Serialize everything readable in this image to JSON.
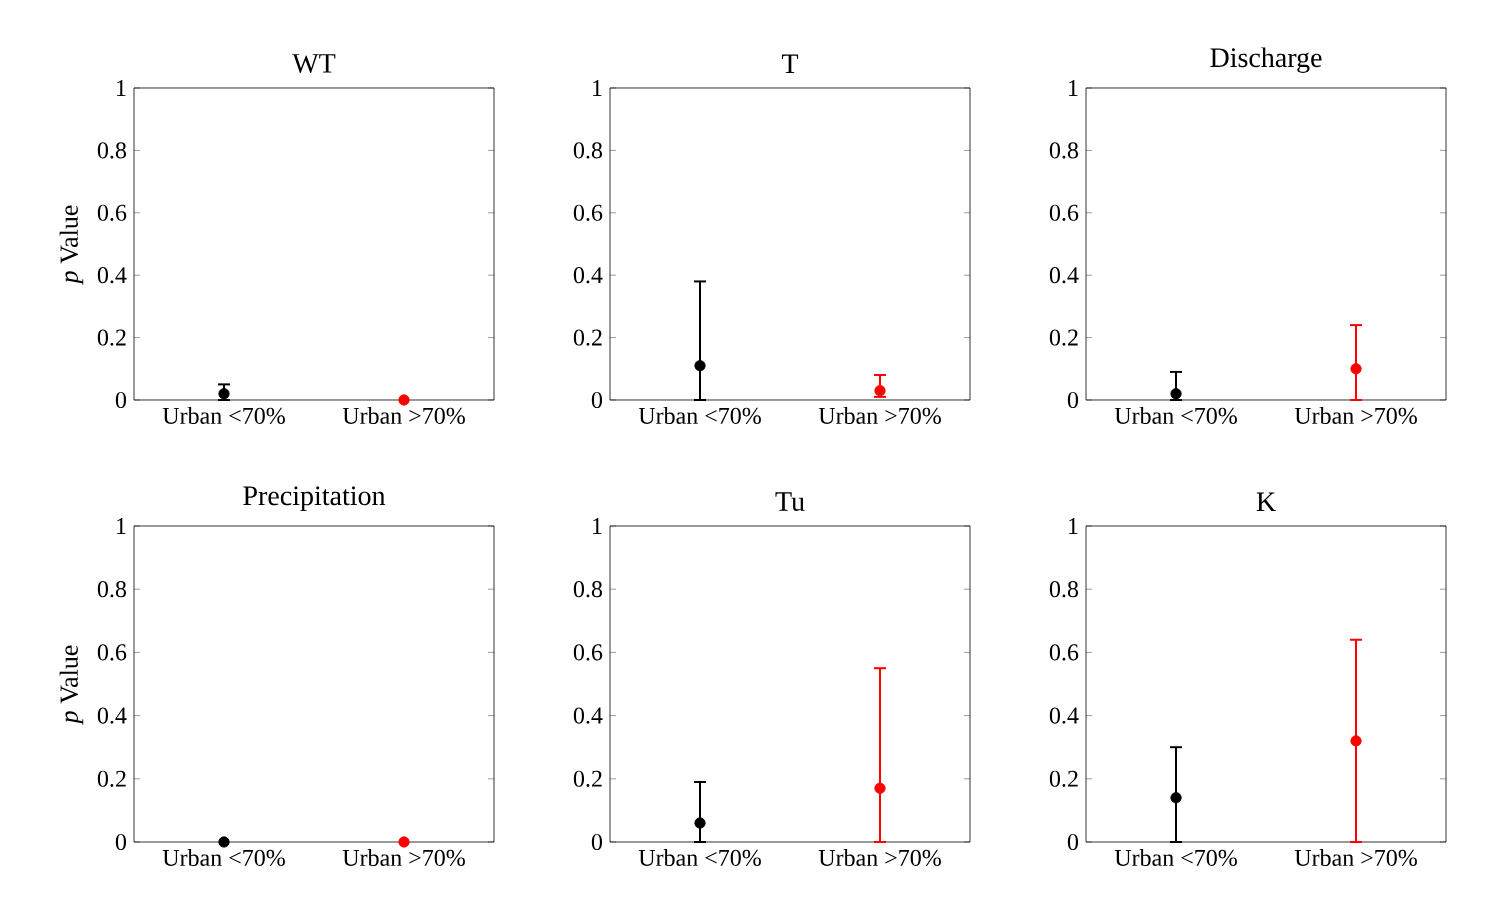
{
  "chart_data": [
    {
      "type": "scatter",
      "title": "WT",
      "ylabel": "*p* Value",
      "categories": [
        "Urban <70%",
        "Urban >70%"
      ],
      "values": [
        0.02,
        0.0
      ],
      "colors": [
        "#000000",
        "#ff0000"
      ],
      "errors": [
        [
          0,
          0.05
        ],
        null
      ],
      "ylim": [
        0,
        1
      ],
      "yticks": [
        0,
        0.2,
        0.4,
        0.6,
        0.8,
        1
      ],
      "grid": false
    },
    {
      "type": "scatter",
      "title": "T",
      "categories": [
        "Urban <70%",
        "Urban >70%"
      ],
      "values": [
        0.11,
        0.03
      ],
      "colors": [
        "#000000",
        "#ff0000"
      ],
      "errors": [
        [
          0,
          0.38
        ],
        [
          0.01,
          0.08
        ]
      ],
      "ylim": [
        0,
        1
      ],
      "yticks": [
        0,
        0.2,
        0.4,
        0.6,
        0.8,
        1
      ],
      "grid": false
    },
    {
      "type": "scatter",
      "title": "Discharge",
      "categories": [
        "Urban <70%",
        "Urban >70%"
      ],
      "values": [
        0.02,
        0.1
      ],
      "colors": [
        "#000000",
        "#ff0000"
      ],
      "errors": [
        [
          0,
          0.09
        ],
        [
          0,
          0.24
        ]
      ],
      "ylim": [
        0,
        1
      ],
      "yticks": [
        0,
        0.2,
        0.4,
        0.6,
        0.8,
        1
      ],
      "grid": false
    },
    {
      "type": "scatter",
      "title": "Precipitation",
      "ylabel": "*p* Value",
      "categories": [
        "Urban <70%",
        "Urban >70%"
      ],
      "values": [
        0.0,
        0.0
      ],
      "colors": [
        "#000000",
        "#ff0000"
      ],
      "errors": [
        null,
        null
      ],
      "ylim": [
        0,
        1
      ],
      "yticks": [
        0,
        0.2,
        0.4,
        0.6,
        0.8,
        1
      ],
      "grid": false
    },
    {
      "type": "scatter",
      "title": "Tu",
      "categories": [
        "Urban <70%",
        "Urban >70%"
      ],
      "values": [
        0.06,
        0.17
      ],
      "colors": [
        "#000000",
        "#ff0000"
      ],
      "errors": [
        [
          0,
          0.19
        ],
        [
          0,
          0.55
        ]
      ],
      "ylim": [
        0,
        1
      ],
      "yticks": [
        0,
        0.2,
        0.4,
        0.6,
        0.8,
        1
      ],
      "grid": false
    },
    {
      "type": "scatter",
      "title": "K",
      "categories": [
        "Urban <70%",
        "Urban >70%"
      ],
      "values": [
        0.14,
        0.32
      ],
      "colors": [
        "#000000",
        "#ff0000"
      ],
      "errors": [
        [
          0,
          0.3
        ],
        [
          0,
          0.64
        ]
      ],
      "ylim": [
        0,
        1
      ],
      "yticks": [
        0,
        0.2,
        0.4,
        0.6,
        0.8,
        1
      ],
      "grid": false
    }
  ]
}
